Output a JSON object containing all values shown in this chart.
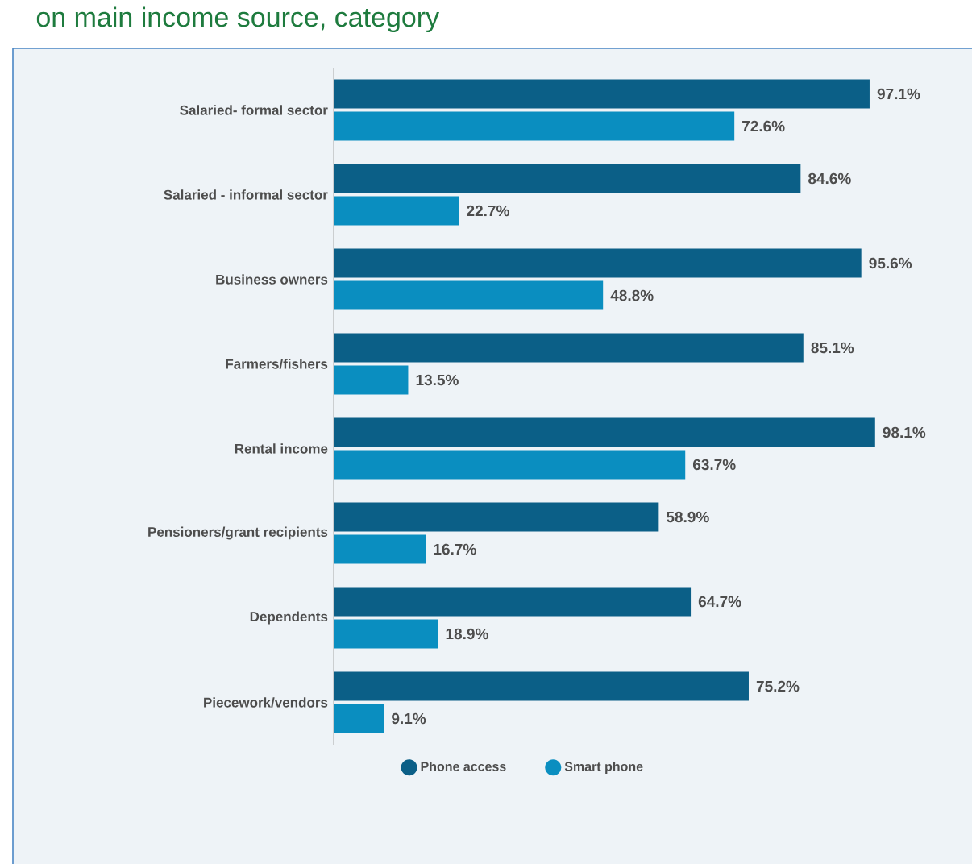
{
  "chart_data": {
    "type": "bar",
    "orientation": "horizontal",
    "title": "on main income source, category",
    "categories": [
      "Salaried- formal sector",
      "Salaried - informal sector",
      "Business owners",
      "Farmers/fishers",
      "Rental income",
      "Pensioners/grant recipients",
      "Dependents",
      "Piecework/vendors"
    ],
    "series": [
      {
        "name": "Phone access",
        "color": "#0b5f87",
        "values": [
          97.1,
          84.6,
          95.6,
          85.1,
          98.1,
          58.9,
          64.7,
          75.2
        ],
        "value_labels": [
          "97.1%",
          "84.6%",
          "95.6%",
          "85.1%",
          "98.1%",
          "58.9%",
          "64.7%",
          "75.2%"
        ]
      },
      {
        "name": "Smart phone",
        "color": "#0a8ec0",
        "values": [
          72.6,
          22.7,
          48.8,
          13.5,
          63.7,
          16.7,
          18.9,
          9.1
        ],
        "value_labels": [
          "72.6%",
          "22.7%",
          "48.8%",
          "13.5%",
          "63.7%",
          "16.7%",
          "18.9%",
          "9.1%"
        ]
      }
    ],
    "legend": "bottom"
  }
}
